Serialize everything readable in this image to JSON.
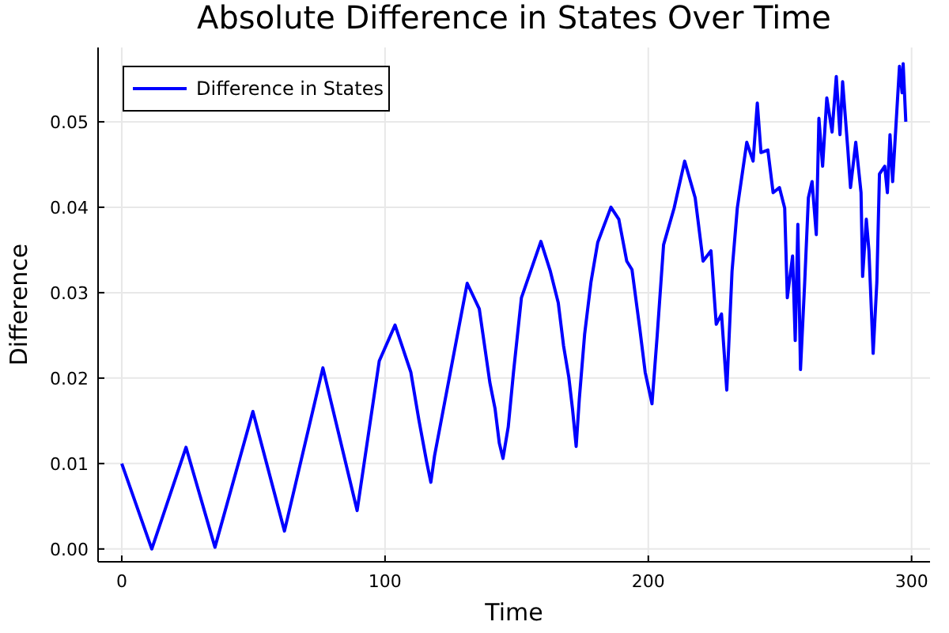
{
  "chart_data": {
    "type": "line",
    "title": "Absolute Difference in States Over Time",
    "xlabel": "Time",
    "ylabel": "Difference",
    "legend": "top left",
    "grid": true,
    "xlim": [
      -9,
      307
    ],
    "xticks": [
      0,
      100,
      200,
      300
    ],
    "ylim": [
      -0.0015,
      0.0587
    ],
    "yticks": [
      {
        "value": 0,
        "label": "0.00"
      },
      {
        "value": 0.01,
        "label": "0.01"
      },
      {
        "value": 0.02,
        "label": "0.02"
      },
      {
        "value": 0.03,
        "label": "0.03"
      },
      {
        "value": 0.04,
        "label": "0.04"
      },
      {
        "value": 0.05,
        "label": "0.05"
      }
    ],
    "series": [
      {
        "name": "Difference in States",
        "color": "#0000ff",
        "x": [
          0,
          11.4,
          24.4,
          35.4,
          49.8,
          61.8,
          76.4,
          89.4,
          97.8,
          103.8,
          109.8,
          112.8,
          115.8,
          117.4,
          118.8,
          131.2,
          135.8,
          137.8,
          139.8,
          141.8,
          143.4,
          144.8,
          146.8,
          148.8,
          151.8,
          159.2,
          162.8,
          165.8,
          167.8,
          169.8,
          171.2,
          172.6,
          173.8,
          175.8,
          178.2,
          180.8,
          185.8,
          188.8,
          191.8,
          193.8,
          196.8,
          198.8,
          201.4,
          203.4,
          205.8,
          209.8,
          213.8,
          217.8,
          220.8,
          223.8,
          225.8,
          227.8,
          229.8,
          231.8,
          233.8,
          237.4,
          239.8,
          241.4,
          242.8,
          245.4,
          247.4,
          249.8,
          251.8,
          252.8,
          254.8,
          255.8,
          256.8,
          257.8,
          259.4,
          260.8,
          262.2,
          263.8,
          264.8,
          266.2,
          267.8,
          269.8,
          271.4,
          272.8,
          273.8,
          275.8,
          276.8,
          278.8,
          280.8,
          281.4,
          282.8,
          283.8,
          285.4,
          286.8,
          287.8,
          289.8,
          290.8,
          291.8,
          292.8,
          293.8,
          295.4,
          296.4,
          296.8,
          297.8
        ],
        "values": [
          0.01,
          0,
          0.0119,
          0.0002,
          0.0161,
          0.0021,
          0.0212,
          0.0045,
          0.022,
          0.0262,
          0.0207,
          0.0152,
          0.0102,
          0.0078,
          0.0109,
          0.0311,
          0.0281,
          0.0238,
          0.0195,
          0.0164,
          0.0124,
          0.0106,
          0.0143,
          0.0207,
          0.0294,
          0.036,
          0.0325,
          0.0288,
          0.0238,
          0.0201,
          0.0164,
          0.012,
          0.0176,
          0.0251,
          0.0312,
          0.0359,
          0.04,
          0.0386,
          0.0337,
          0.0327,
          0.0257,
          0.0207,
          0.017,
          0.0251,
          0.0356,
          0.0399,
          0.0454,
          0.0411,
          0.0337,
          0.0349,
          0.0263,
          0.0275,
          0.0186,
          0.0325,
          0.0399,
          0.0476,
          0.0454,
          0.0522,
          0.0464,
          0.0467,
          0.0417,
          0.0423,
          0.0399,
          0.0294,
          0.0343,
          0.0244,
          0.038,
          0.021,
          0.0312,
          0.0411,
          0.043,
          0.0368,
          0.0504,
          0.0448,
          0.0528,
          0.0488,
          0.0553,
          0.0485,
          0.0547,
          0.0467,
          0.0423,
          0.0476,
          0.0417,
          0.0319,
          0.0386,
          0.0349,
          0.0229,
          0.0312,
          0.0439,
          0.0448,
          0.0417,
          0.0485,
          0.043,
          0.0482,
          0.0565,
          0.0534,
          0.0568,
          0.05
        ]
      }
    ]
  }
}
